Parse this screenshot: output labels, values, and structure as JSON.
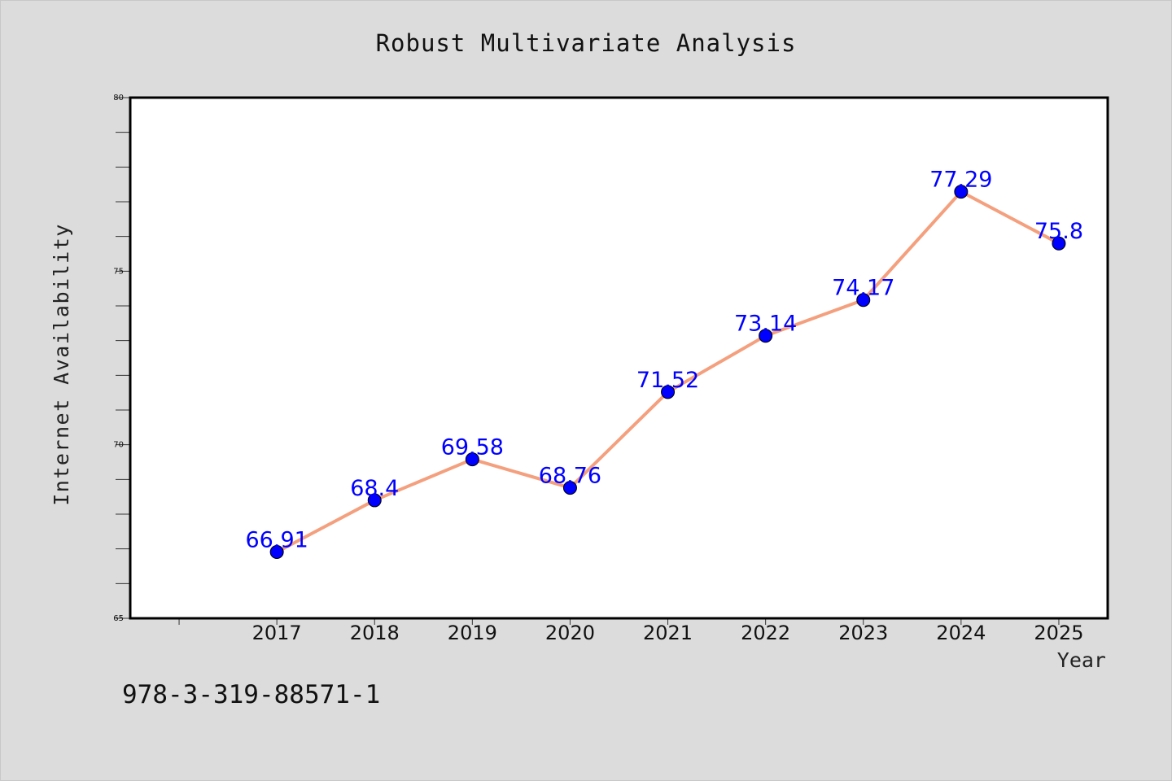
{
  "chart_data": {
    "type": "line",
    "title": "Robust Multivariate Analysis",
    "xlabel": "Year",
    "ylabel": "Internet Availability",
    "x": [
      "2017",
      "2018",
      "2019",
      "2020",
      "2021",
      "2022",
      "2023",
      "2024",
      "2025"
    ],
    "series": [
      {
        "values": [
          66.91,
          68.4,
          69.58,
          68.76,
          71.52,
          73.14,
          74.17,
          77.29,
          75.8
        ],
        "labels": [
          "66.91",
          "68.4",
          "69.58",
          "68.76",
          "71.52",
          "73.14",
          "74.17",
          "77.29",
          "75.8"
        ]
      }
    ],
    "xlim": [
      2015.5,
      2025.5
    ],
    "ylim": [
      65,
      80
    ],
    "yticks_major": [
      "65",
      "70",
      "75",
      "80"
    ],
    "yticks_minor_step": 1,
    "grid": false,
    "legend": "none",
    "colors": {
      "line": "#f4a07e",
      "marker": "#0000ff",
      "label": "#0000ff",
      "background": "#dcdcdc",
      "plot_area": "#ffffff"
    }
  },
  "footer_text": "978-3-319-88571-1"
}
